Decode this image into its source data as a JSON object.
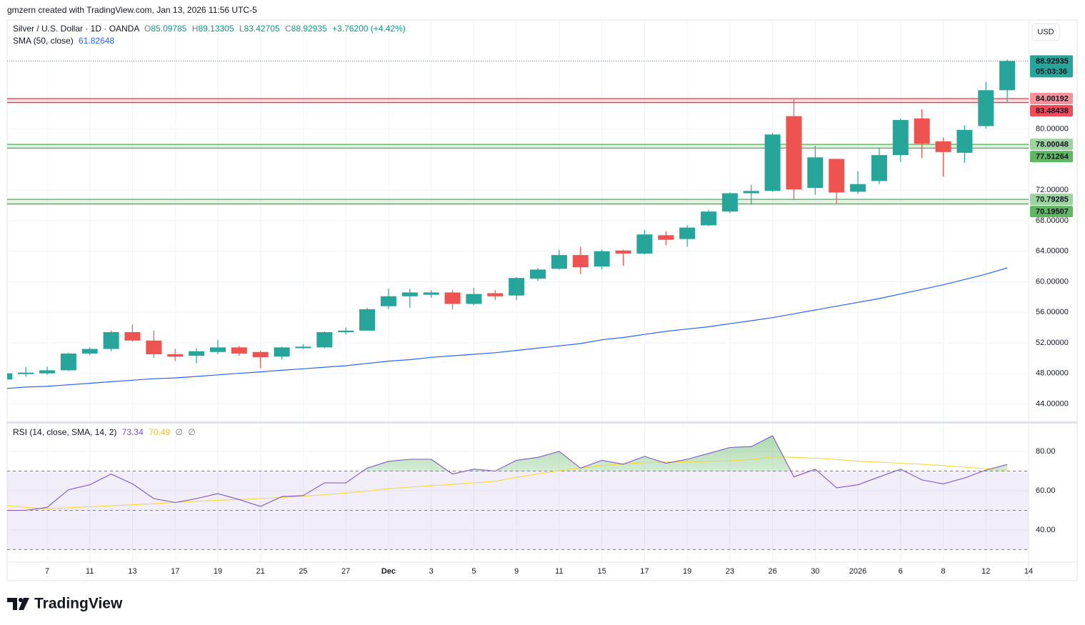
{
  "header": {
    "text": "gmzern created with TradingView.com, Jan 13, 2026 11:56 UTC-5"
  },
  "chart_data": [
    {
      "type": "candlestick",
      "title": "Silver / U.S. Dollar · 1D · OANDA",
      "ohlc_letters": [
        "O",
        "H",
        "L",
        "C"
      ],
      "change_label": "+3.76200 (+4.42%)",
      "currency": "USD",
      "countdown": "05:03:36",
      "up_color": "#26a69a",
      "down_color": "#ef5350",
      "categories": [
        null,
        null,
        "7",
        null,
        "11",
        null,
        "13",
        null,
        "17",
        null,
        "19",
        null,
        "21",
        null,
        "25",
        null,
        "27",
        null,
        "Dec",
        null,
        "3",
        null,
        "5",
        null,
        "9",
        null,
        "11",
        null,
        "15",
        null,
        "17",
        null,
        "19",
        null,
        "23",
        null,
        "26",
        null,
        "30",
        null,
        "2026",
        null,
        "6",
        null,
        "8",
        null,
        "12",
        null,
        "14"
      ],
      "open": [
        47.2,
        47.9,
        48.0,
        48.4,
        50.6,
        51.2,
        53.4,
        52.3,
        50.5,
        50.3,
        50.8,
        51.4,
        50.8,
        50.2,
        51.3,
        51.4,
        53.4,
        53.6,
        56.8,
        58.1,
        58.3,
        58.6,
        57.1,
        58.5,
        58.2,
        60.4,
        61.7,
        63.5,
        62.0,
        64.1,
        63.7,
        66.1,
        65.6,
        67.4,
        69.2,
        71.6,
        71.9,
        81.7,
        72.3,
        76.1,
        71.8,
        73.2,
        76.6,
        81.4,
        78.4,
        76.9,
        80.4,
        85.09785,
        null
      ],
      "high": [
        48.1,
        48.8,
        48.9,
        50.7,
        51.4,
        53.6,
        54.4,
        53.6,
        51.2,
        51.3,
        52.4,
        51.6,
        51.0,
        51.5,
        51.8,
        53.5,
        54.0,
        56.6,
        59.1,
        59.1,
        58.9,
        58.9,
        59.2,
        58.9,
        60.6,
        61.8,
        64.2,
        64.6,
        64.2,
        64.2,
        66.8,
        66.6,
        67.4,
        69.4,
        71.7,
        72.7,
        79.5,
        83.9,
        77.8,
        76.1,
        74.5,
        77.6,
        81.4,
        82.6,
        78.9,
        80.5,
        86.2,
        89.13305,
        null
      ],
      "low": [
        47.0,
        47.6,
        47.8,
        48.3,
        50.4,
        50.9,
        52.2,
        50.0,
        49.6,
        49.3,
        50.5,
        50.3,
        48.7,
        49.8,
        51.2,
        51.3,
        53.1,
        53.6,
        56.4,
        56.6,
        57.9,
        56.4,
        56.9,
        57.6,
        57.6,
        60.1,
        61.6,
        61.0,
        61.6,
        62.1,
        63.6,
        64.8,
        64.6,
        67.3,
        69.0,
        70.1,
        71.8,
        70.7,
        71.4,
        70.2,
        71.5,
        72.8,
        75.7,
        76.2,
        73.8,
        75.6,
        80.1,
        83.42705,
        null
      ],
      "close": [
        48.0,
        48.1,
        48.4,
        50.6,
        51.2,
        53.4,
        52.3,
        50.5,
        50.2,
        50.9,
        51.4,
        50.6,
        50.1,
        51.4,
        51.5,
        53.4,
        53.6,
        56.4,
        58.1,
        58.6,
        58.6,
        57.1,
        58.4,
        58.1,
        60.5,
        61.6,
        63.5,
        61.9,
        64.0,
        63.7,
        66.2,
        65.5,
        67.1,
        69.2,
        71.6,
        71.9,
        79.3,
        72.1,
        76.3,
        71.7,
        72.8,
        76.6,
        81.2,
        78.1,
        77.0,
        79.9,
        85.1,
        88.92935,
        null
      ],
      "series": [
        {
          "name": "SMA (50, close)",
          "color": "#2962ff",
          "values": [
            46.0,
            46.2,
            46.3,
            46.5,
            46.7,
            46.9,
            47.1,
            47.3,
            47.4,
            47.6,
            47.8,
            48.0,
            48.2,
            48.4,
            48.6,
            48.8,
            49.0,
            49.3,
            49.6,
            49.8,
            50.1,
            50.3,
            50.5,
            50.7,
            51.0,
            51.3,
            51.6,
            51.9,
            52.4,
            52.7,
            53.1,
            53.5,
            53.8,
            54.1,
            54.5,
            54.9,
            55.3,
            55.8,
            56.3,
            56.8,
            57.3,
            57.8,
            58.4,
            59.0,
            59.6,
            60.3,
            61.0,
            61.82648,
            null
          ]
        }
      ],
      "zones": [
        {
          "top": 84.00192,
          "bottom": 83.48438,
          "color": "#f23645",
          "label_color": "#ffffff"
        },
        {
          "top": 78.00048,
          "bottom": 77.51264,
          "color": "#4caf50",
          "label_color": "#131722"
        },
        {
          "top": 70.79285,
          "bottom": 70.19507,
          "color": "#4caf50",
          "label_color": "#131722"
        }
      ],
      "ylim": [
        41.7,
        94.3
      ],
      "yticks": [
        {
          "value": 44,
          "label": "44.00000"
        },
        {
          "value": 48,
          "label": "48.00000"
        },
        {
          "value": 52,
          "label": "52.00000"
        },
        {
          "value": 56,
          "label": "56.00000"
        },
        {
          "value": 60,
          "label": "60.00000"
        },
        {
          "value": 64,
          "label": "64.00000"
        },
        {
          "value": 68,
          "label": "68.00000"
        },
        {
          "value": 72,
          "label": "72.00000"
        },
        {
          "value": 80,
          "label": "80.00000"
        }
      ],
      "grid": true
    },
    {
      "type": "line",
      "title": "RSI (14, close, SMA, 14, 2)",
      "extra": [
        "∅",
        "∅"
      ],
      "series": [
        {
          "color": "#7e57c2",
          "values": [
            50,
            50,
            51.5,
            60.5,
            63,
            68.5,
            63.5,
            56,
            54,
            56,
            58.5,
            55.5,
            52,
            57,
            57.5,
            64,
            64,
            71.5,
            75,
            76,
            76,
            68.5,
            71,
            70,
            75.5,
            77,
            80,
            71.5,
            75.5,
            73.5,
            77.5,
            74,
            76,
            79,
            82,
            82.5,
            88,
            67,
            71,
            61.5,
            63,
            67,
            71,
            65.5,
            63.5,
            66.5,
            70.5,
            73.34,
            null
          ]
        },
        {
          "color": "#f5d83a",
          "values": [
            52.5,
            51.5,
            50.8,
            51.3,
            51.8,
            52.3,
            52.8,
            53.4,
            54.0,
            54.6,
            55.1,
            55.5,
            56.0,
            56.5,
            57.2,
            58.0,
            58.8,
            59.8,
            61,
            61.8,
            62.5,
            63.2,
            64,
            64.8,
            66.8,
            68.5,
            70.2,
            71.5,
            72.8,
            73.6,
            74.3,
            74.6,
            74.8,
            75.0,
            75.2,
            75.9,
            77.2,
            77.0,
            76.6,
            75.9,
            75.0,
            74.5,
            74.0,
            73.5,
            72.8,
            72.0,
            71.2,
            70.49,
            null
          ]
        }
      ],
      "levels": [
        70,
        50,
        30
      ],
      "band_color": "#7e57c2",
      "overbought_color": "#4caf50",
      "ylim": [
        23.6,
        94.2
      ],
      "yticks": [
        {
          "value": 40,
          "label": "40.00"
        },
        {
          "value": 60,
          "label": "60.00"
        },
        {
          "value": 80,
          "label": "80.00"
        }
      ],
      "grid": true
    }
  ],
  "footer": {
    "brand": "TradingView"
  }
}
